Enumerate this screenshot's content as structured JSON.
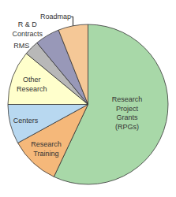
{
  "chart_data": {
    "type": "pie",
    "categories": [
      "Research\nProject\nGrants\n(RPGs)",
      "Research\nTraining",
      "Centers",
      "Other\nResearch",
      "RMS",
      "R & D\nContracts",
      "Roadmap"
    ],
    "values": [
      57,
      10,
      8,
      11,
      3,
      5,
      6
    ],
    "colors": [
      "#a8d8a8",
      "#f5b87a",
      "#b8d8f0",
      "#ffffcc",
      "#b8b8b8",
      "#9898b8",
      "#f5c897"
    ]
  }
}
